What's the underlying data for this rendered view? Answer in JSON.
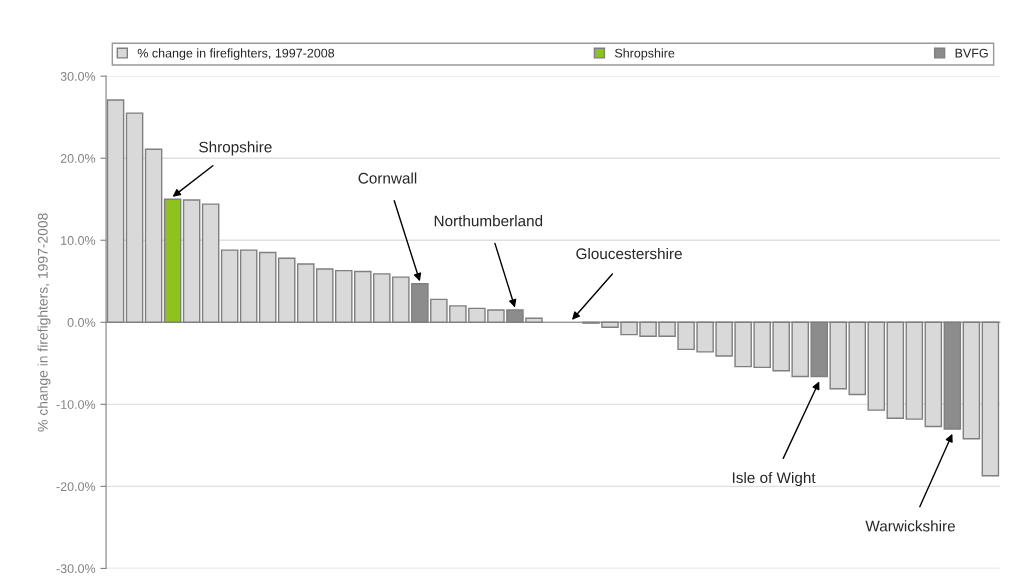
{
  "chart_data": {
    "type": "bar",
    "categories": [
      null,
      null,
      null,
      null,
      null,
      null,
      null,
      null,
      null,
      null,
      null,
      null,
      null,
      null,
      null,
      null,
      null,
      null,
      null,
      null,
      null,
      null,
      null,
      null,
      null,
      null,
      null,
      null,
      null,
      null,
      null,
      null,
      null,
      null,
      null,
      null,
      null,
      null,
      null,
      null,
      null,
      null,
      null,
      null,
      null,
      null,
      null
    ],
    "series": [
      {
        "name": "% change in firefighters, 1997-2008",
        "color": "#d9d9d9",
        "values": [
          27.1,
          25.5,
          21.1,
          null,
          14.9,
          14.4,
          8.8,
          8.8,
          8.5,
          7.8,
          7.1,
          6.5,
          6.3,
          6.2,
          5.9,
          5.5,
          null,
          2.8,
          2.0,
          1.7,
          1.5,
          null,
          0.5,
          0,
          null,
          -0.1,
          -0.6,
          -1.5,
          -1.7,
          -1.7,
          -3.3,
          -3.6,
          -4.1,
          -5.4,
          -5.5,
          -5.9,
          -6.6,
          null,
          -8.1,
          -8.8,
          -10.7,
          -11.7,
          -11.8,
          -12.7,
          null,
          -14.2,
          -18.7
        ]
      },
      {
        "name": "Shropshire",
        "color": "#8dc21f",
        "values": [
          null,
          null,
          null,
          15.0,
          null,
          null,
          null,
          null,
          null,
          null,
          null,
          null,
          null,
          null,
          null,
          null,
          null,
          null,
          null,
          null,
          null,
          null,
          null,
          null,
          null,
          null,
          null,
          null,
          null,
          null,
          null,
          null,
          null,
          null,
          null,
          null,
          null,
          null,
          null,
          null,
          null,
          null,
          null,
          null,
          null,
          null,
          null
        ]
      },
      {
        "name": "BVFG",
        "color": "#8c8c8c",
        "values": [
          null,
          null,
          null,
          null,
          null,
          null,
          null,
          null,
          null,
          null,
          null,
          null,
          null,
          null,
          null,
          null,
          4.7,
          null,
          null,
          null,
          null,
          1.5,
          null,
          null,
          0,
          null,
          null,
          null,
          null,
          null,
          null,
          null,
          null,
          null,
          null,
          null,
          null,
          -6.6,
          null,
          null,
          null,
          null,
          null,
          null,
          -13.0,
          null,
          null
        ]
      }
    ],
    "ylabel": "% change in firefighters, 1997-2008",
    "ylim": [
      -30,
      30
    ],
    "yticks": [
      {
        "value": -30,
        "label": "-30.0%"
      },
      {
        "value": -20,
        "label": "-20.0%"
      },
      {
        "value": -10,
        "label": "-10.0%"
      },
      {
        "value": 0,
        "label": "0.0%"
      },
      {
        "value": 10,
        "label": "10.0%"
      },
      {
        "value": 20,
        "label": "20.0%"
      },
      {
        "value": 30,
        "label": "30.0%"
      }
    ],
    "grid": "y",
    "legend": "top",
    "annotations": [
      "Shropshire",
      "Cornwall",
      "Northumberland",
      "Gloucestershire",
      "Isle of Wight",
      "Warwickshire"
    ]
  }
}
